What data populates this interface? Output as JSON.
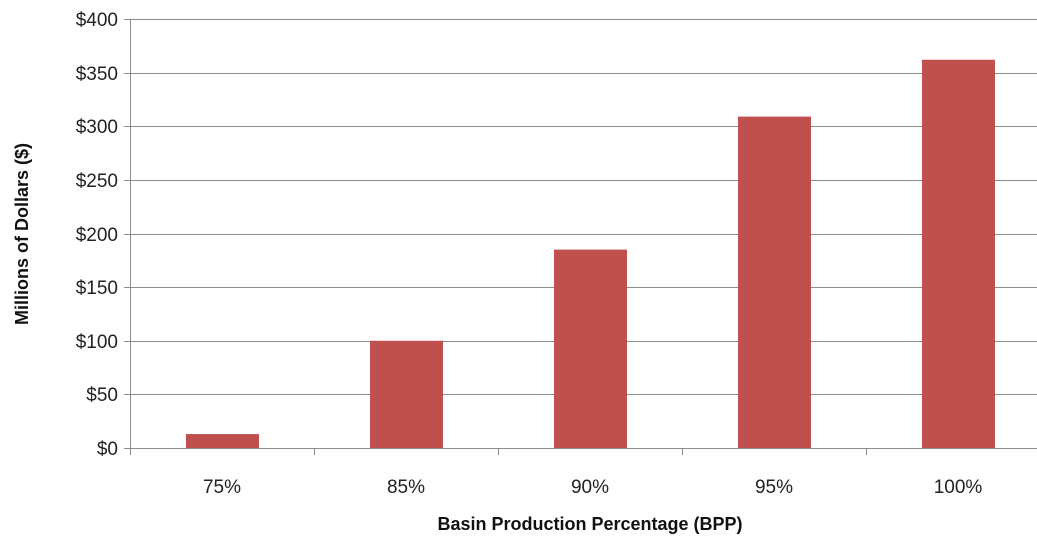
{
  "chart_data": {
    "type": "bar",
    "title": "",
    "xlabel": "Basin Production Percentage (BPP)",
    "ylabel": "Millions of Dollars ($)",
    "categories": [
      "75%",
      "85%",
      "90%",
      "95%",
      "100%"
    ],
    "series": [
      {
        "values": [
          13,
          100,
          185,
          309,
          362
        ],
        "color": "#c0504d"
      }
    ],
    "ylim": [
      0,
      400
    ],
    "yticks": [
      0,
      50,
      100,
      150,
      200,
      250,
      300,
      350,
      400
    ],
    "ytick_labels": [
      "$0",
      "$50",
      "$100",
      "$150",
      "$200",
      "$250",
      "$300",
      "$350",
      "$400"
    ],
    "grid": true,
    "legend": "none"
  }
}
